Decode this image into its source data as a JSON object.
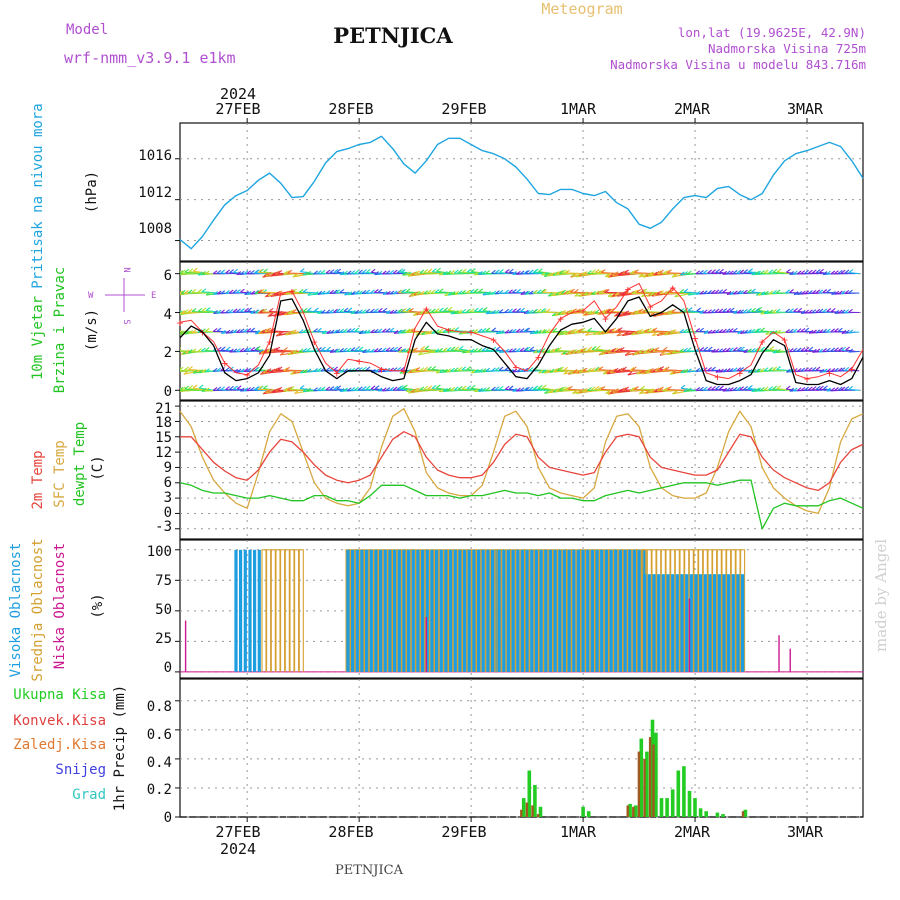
{
  "header": {
    "model_label": "Model",
    "model_name": "wrf-nmm_v3.9.1 e1km",
    "station": "PETNJICA",
    "product": "Meteogram",
    "coords": "lon,lat (19.9625E, 42.9N)",
    "altitude": "Nadmorska Visina 725m",
    "model_altitude": "Nadmorska Visina u modelu 843.716m",
    "year_top": "2024",
    "year_bottom": "2024",
    "footer_station": "PETNJICA",
    "credit": "made by Angel"
  },
  "colors": {
    "pressure": "#1ea5e0",
    "wind_speed": "#000000",
    "gust": "#ff3030",
    "t2m": "#e8453c",
    "tsfc": "#d8a840",
    "dewpt": "#22c422",
    "cloud_high": "#1e9ee0",
    "cloud_mid": "#d4a030",
    "cloud_low": "#cc1890",
    "precip_total": "#22cc22",
    "precip_conv": "#e04040",
    "precip_frozen": "#e07830",
    "snow": "#4040e0",
    "hail": "#30c8c0",
    "title_purple": "#b050d0",
    "meteogram_gold": "#e8c070"
  },
  "dates": [
    "27FEB",
    "28FEB",
    "29FEB",
    "1MAR",
    "2MAR",
    "3MAR"
  ],
  "panels": {
    "pressure": {
      "labels": [
        "Pritisak na nivou mora"
      ],
      "unit": "(hPa)",
      "ticks": [
        "1008",
        "1012",
        "1016"
      ]
    },
    "wind": {
      "labels": [
        "10m Vjetar",
        "Brzina i Pravac"
      ],
      "unit": "(m/s)",
      "ticks": [
        "0",
        "2",
        "4",
        "6"
      ],
      "compass": {
        "n": "N",
        "w": "W",
        "e": "E",
        "s": "S"
      }
    },
    "temp": {
      "labels": [
        "2m Temp",
        "SFC Temp",
        "dewpt Temp"
      ],
      "unit": "(C)",
      "ticks": [
        "-3",
        "0",
        "3",
        "6",
        "9",
        "12",
        "15",
        "18",
        "21"
      ]
    },
    "cloud": {
      "labels": [
        "Visoka Oblacnost",
        "Srednja Oblacnost",
        "Niska Oblacnost"
      ],
      "unit": "(%)",
      "ticks": [
        "0",
        "25",
        "50",
        "75",
        "100"
      ]
    },
    "precip": {
      "labels": [
        "Ukupna Kisa",
        "Konvek.Kisa",
        "Zaledj.Kisa",
        "Snijeg",
        "Grad"
      ],
      "unit": "1hr Precip (mm)",
      "ticks": [
        "0",
        "0.2",
        "0.4",
        "0.6",
        "0.8"
      ]
    }
  },
  "chart_data": [
    {
      "type": "line",
      "title": "Pritisak na nivou mora",
      "ylabel": "(hPa)",
      "ylim": [
        1006,
        1019.5
      ],
      "x_unit": "day offset from 27FEB 00UTC",
      "xlim": [
        -0.6,
        5.5
      ],
      "grid": true,
      "x": [
        -0.6,
        -0.5,
        -0.4,
        -0.3,
        -0.2,
        -0.1,
        0.0,
        0.1,
        0.2,
        0.3,
        0.4,
        0.5,
        0.6,
        0.7,
        0.8,
        0.9,
        1.0,
        1.1,
        1.2,
        1.3,
        1.4,
        1.5,
        1.6,
        1.7,
        1.8,
        1.9,
        2.0,
        2.1,
        2.2,
        2.3,
        2.4,
        2.5,
        2.6,
        2.7,
        2.8,
        2.9,
        3.0,
        3.1,
        3.2,
        3.3,
        3.4,
        3.5,
        3.6,
        3.7,
        3.8,
        3.9,
        4.0,
        4.1,
        4.2,
        4.3,
        4.4,
        4.5,
        4.6,
        4.7,
        4.8,
        4.9,
        5.0,
        5.1,
        5.2,
        5.3,
        5.4,
        5.5
      ],
      "series": [
        {
          "values": [
            1008.1,
            1007.2,
            1008.4,
            1010.0,
            1011.5,
            1012.4,
            1012.9,
            1013.9,
            1014.6,
            1013.6,
            1012.2,
            1012.3,
            1013.8,
            1015.6,
            1016.7,
            1017.0,
            1017.4,
            1017.6,
            1018.2,
            1017.0,
            1015.5,
            1014.6,
            1015.8,
            1017.4,
            1018.0,
            1018.0,
            1017.4,
            1016.8,
            1016.5,
            1016.0,
            1015.2,
            1014.0,
            1012.6,
            1012.5,
            1013.0,
            1013.0,
            1012.6,
            1012.4,
            1012.8,
            1011.7,
            1011.1,
            1009.6,
            1009.2,
            1009.8,
            1011.1,
            1012.2,
            1012.4,
            1012.2,
            1013.1,
            1013.3,
            1012.5,
            1012.0,
            1012.6,
            1014.4,
            1015.8,
            1016.5,
            1016.8,
            1017.2,
            1017.6,
            1017.2,
            1015.8,
            1014.1
          ]
        }
      ]
    },
    {
      "type": "line",
      "title": "10m Vjetar Brzina i Pravac",
      "ylabel": "(m/s)",
      "ylim": [
        -0.5,
        6.6
      ],
      "x_unit": "day offset from 27FEB 00UTC",
      "xlim": [
        -0.6,
        5.5
      ],
      "series": [
        {
          "values": [
            2.7,
            3.3,
            3.0,
            2.3,
            0.9,
            0.5,
            0.6,
            0.9,
            1.8,
            4.6,
            4.7,
            3.6,
            2.1,
            1.0,
            0.6,
            1.0,
            1.0,
            1.0,
            0.7,
            0.5,
            0.6,
            2.6,
            3.5,
            2.9,
            2.8,
            2.6,
            2.6,
            2.3,
            2.1,
            1.4,
            0.7,
            0.6,
            1.3,
            2.3,
            3.1,
            3.4,
            3.5,
            3.7,
            3.0,
            3.7,
            4.6,
            4.8,
            3.8,
            4.0,
            4.4,
            4.0,
            2.1,
            0.5,
            0.3,
            0.3,
            0.5,
            0.8,
            1.9,
            2.6,
            2.3,
            0.4,
            0.3,
            0.3,
            0.5,
            0.3,
            0.6,
            1.7
          ]
        },
        {
          "values": [
            3.5,
            3.6,
            3.0,
            2.5,
            1.4,
            0.9,
            0.8,
            1.3,
            2.5,
            5.0,
            5.1,
            4.0,
            2.5,
            1.4,
            0.9,
            1.6,
            1.5,
            1.4,
            1.1,
            1.0,
            1.0,
            3.2,
            4.2,
            3.3,
            3.1,
            3.0,
            3.0,
            2.8,
            2.6,
            2.0,
            1.2,
            1.0,
            1.7,
            2.9,
            3.7,
            4.0,
            4.1,
            4.6,
            3.7,
            4.3,
            5.2,
            5.5,
            4.3,
            4.6,
            5.3,
            4.6,
            2.7,
            0.9,
            0.7,
            0.6,
            0.9,
            1.3,
            2.5,
            3.0,
            2.6,
            0.8,
            0.6,
            0.7,
            0.9,
            0.7,
            1.1,
            2.1
          ]
        }
      ]
    },
    {
      "type": "line",
      "title": "2m Temp / SFC Temp / dewpt Temp",
      "ylabel": "(C)",
      "ylim": [
        -5,
        22
      ],
      "x_unit": "day offset from 27FEB 00UTC",
      "xlim": [
        -0.6,
        5.5
      ],
      "series": [
        {
          "values": [
            15.0,
            15.0,
            12.5,
            10.0,
            8.3,
            7.0,
            6.5,
            8.5,
            12.0,
            14.5,
            14.0,
            12.0,
            9.5,
            7.5,
            6.5,
            6.0,
            6.5,
            7.5,
            11.0,
            14.5,
            16.0,
            15.0,
            11.0,
            8.5,
            7.5,
            7.0,
            7.0,
            7.5,
            10.0,
            13.5,
            15.5,
            15.0,
            11.0,
            9.0,
            8.5,
            8.0,
            7.5,
            8.0,
            12.0,
            15.0,
            15.5,
            15.0,
            11.0,
            9.0,
            8.5,
            8.0,
            7.5,
            7.5,
            8.5,
            12.0,
            15.5,
            15.0,
            11.0,
            8.5,
            7.0,
            6.0,
            5.0,
            4.5,
            6.0,
            10.0,
            12.5,
            13.5
          ]
        },
        {
          "values": [
            20.0,
            17.0,
            11.0,
            6.5,
            4.0,
            2.0,
            1.0,
            8.0,
            16.0,
            19.5,
            18.0,
            12.0,
            6.0,
            3.0,
            2.0,
            1.5,
            2.0,
            5.0,
            13.0,
            19.0,
            20.5,
            16.0,
            8.0,
            5.0,
            4.0,
            3.5,
            3.5,
            5.5,
            12.0,
            19.0,
            20.0,
            17.0,
            9.0,
            5.0,
            4.0,
            3.5,
            3.0,
            5.0,
            14.0,
            19.0,
            19.5,
            17.0,
            9.0,
            5.0,
            3.5,
            3.0,
            3.0,
            4.0,
            9.0,
            16.0,
            20.0,
            17.0,
            9.0,
            5.0,
            3.0,
            1.5,
            0.5,
            0.0,
            5.0,
            14.0,
            18.5,
            19.5
          ]
        },
        {
          "values": [
            6.0,
            5.5,
            4.5,
            4.0,
            4.0,
            3.5,
            3.0,
            3.0,
            3.5,
            3.0,
            2.5,
            2.5,
            3.5,
            3.5,
            2.5,
            2.5,
            2.0,
            3.5,
            5.5,
            5.5,
            5.5,
            4.5,
            3.5,
            3.5,
            3.5,
            3.0,
            3.5,
            3.5,
            4.0,
            4.5,
            4.0,
            4.0,
            3.5,
            4.0,
            3.0,
            3.0,
            2.5,
            2.5,
            3.5,
            4.0,
            4.5,
            4.0,
            4.5,
            5.0,
            5.5,
            6.0,
            6.0,
            6.0,
            5.5,
            6.0,
            6.5,
            6.5,
            -3.0,
            1.0,
            2.0,
            1.5,
            1.5,
            1.5,
            2.5,
            3.0,
            2.0,
            1.0
          ]
        }
      ]
    },
    {
      "type": "bar",
      "title": "Visoka / Srednja / Niska Oblacnost",
      "ylabel": "(%)",
      "ylim": [
        -5,
        108
      ],
      "x_unit": "day offset from 27FEB 00UTC",
      "xlim": [
        -0.6,
        5.5
      ],
      "segments": [
        {
          "x": [
            -0.6,
            -0.1
          ],
          "high": 0,
          "mid": 0,
          "low": 0
        },
        {
          "x": [
            -0.1,
            0.15
          ],
          "high": 100,
          "mid": 0,
          "low": 0
        },
        {
          "x": [
            0.15,
            0.5
          ],
          "high": 0,
          "mid": 100,
          "low": 0
        },
        {
          "x": [
            0.5,
            0.9
          ],
          "high": 0,
          "mid": 0,
          "low": 0
        },
        {
          "x": [
            0.9,
            2.25
          ],
          "high": 100,
          "mid": 100,
          "low": 0
        },
        {
          "x": [
            2.25,
            3.55
          ],
          "high": 100,
          "mid": 100,
          "low": 0
        },
        {
          "x": [
            3.55,
            4.45
          ],
          "high": 80,
          "mid": 100,
          "low": 0
        },
        {
          "x": [
            4.45,
            5.5
          ],
          "high": 0,
          "mid": 0,
          "low": 0
        }
      ],
      "spikes": [
        {
          "x": -0.55,
          "low": 42
        },
        {
          "x": 4.75,
          "low": 30
        },
        {
          "x": 4.85,
          "low": 19
        },
        {
          "x": 3.95,
          "low": 60
        },
        {
          "x": 1.6,
          "low": 45
        }
      ]
    },
    {
      "type": "bar",
      "title": "1hr Precip",
      "ylabel": "(mm)",
      "ylim": [
        0,
        0.95
      ],
      "x_unit": "day offset from 27FEB 00UTC",
      "xlim": [
        -0.6,
        5.5
      ],
      "x": [
        2.47,
        2.52,
        2.57,
        2.62,
        3.0,
        3.05,
        3.42,
        3.47,
        3.52,
        3.57,
        3.62,
        3.65,
        3.7,
        3.75,
        3.8,
        3.85,
        3.9,
        3.95,
        4.0,
        4.05,
        4.1,
        4.2,
        4.25,
        4.45
      ],
      "series": [
        {
          "name": "Ukupna Kisa",
          "values": [
            0.13,
            0.32,
            0.22,
            0.07,
            0.07,
            0.04,
            0.09,
            0.08,
            0.54,
            0.45,
            0.67,
            0.58,
            0.13,
            0.13,
            0.19,
            0.32,
            0.35,
            0.18,
            0.13,
            0.06,
            0.04,
            0.03,
            0.02,
            0.05
          ]
        },
        {
          "name": "Konvek.Kisa",
          "values": [
            0.05,
            0.1,
            0.08,
            0.02,
            0.0,
            0.0,
            0.08,
            0.07,
            0.45,
            0.4,
            0.55,
            0.5,
            0.0,
            0.0,
            0.0,
            0.0,
            0.0,
            0.0,
            0.0,
            0.0,
            0.0,
            0.0,
            0.0,
            0.04
          ]
        }
      ]
    }
  ]
}
